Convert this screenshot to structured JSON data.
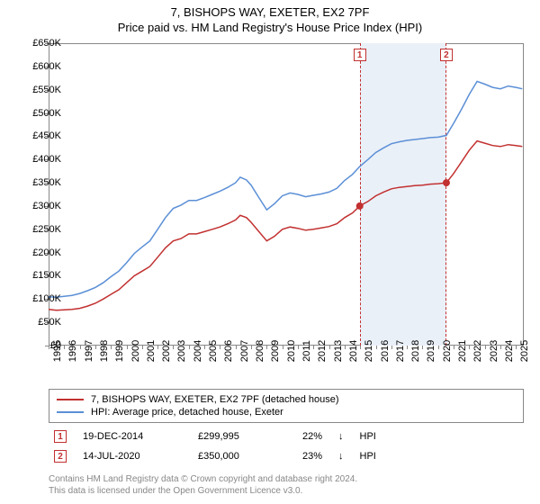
{
  "title_line1": "7, BISHOPS WAY, EXETER, EX2 7PF",
  "title_line2": "Price paid vs. HM Land Registry's House Price Index (HPI)",
  "chart": {
    "type": "line",
    "background_color": "#ffffff",
    "border_color": "#888888",
    "x_start_year": 1995,
    "x_end_year": 2025.5,
    "y_min": 0,
    "y_max": 650000,
    "y_tick_step": 50000,
    "y_tick_labels": [
      "£0",
      "£50K",
      "£100K",
      "£150K",
      "£200K",
      "£250K",
      "£300K",
      "£350K",
      "£400K",
      "£450K",
      "£500K",
      "£550K",
      "£600K",
      "£650K"
    ],
    "x_tick_years": [
      1995,
      1996,
      1997,
      1998,
      1999,
      2000,
      2001,
      2002,
      2003,
      2004,
      2005,
      2006,
      2007,
      2008,
      2009,
      2010,
      2011,
      2012,
      2013,
      2014,
      2015,
      2016,
      2017,
      2018,
      2019,
      2020,
      2021,
      2022,
      2023,
      2024,
      2025
    ],
    "series": [
      {
        "id": "price_paid",
        "label": "7, BISHOPS WAY, EXETER, EX2 7PF (detached house)",
        "color": "#c23030",
        "line_width": 1.5,
        "data": [
          [
            1995.0,
            78
          ],
          [
            1995.5,
            76
          ],
          [
            1996.0,
            77
          ],
          [
            1996.5,
            78
          ],
          [
            1997.0,
            80
          ],
          [
            1997.5,
            85
          ],
          [
            1998.0,
            91
          ],
          [
            1998.5,
            100
          ],
          [
            1999.0,
            110
          ],
          [
            1999.5,
            120
          ],
          [
            2000.0,
            135
          ],
          [
            2000.5,
            150
          ],
          [
            2001.0,
            160
          ],
          [
            2001.5,
            170
          ],
          [
            2002.0,
            190
          ],
          [
            2002.5,
            210
          ],
          [
            2003.0,
            225
          ],
          [
            2003.5,
            230
          ],
          [
            2004.0,
            240
          ],
          [
            2004.5,
            240
          ],
          [
            2005.0,
            245
          ],
          [
            2005.5,
            250
          ],
          [
            2006.0,
            255
          ],
          [
            2006.5,
            262
          ],
          [
            2007.0,
            270
          ],
          [
            2007.3,
            280
          ],
          [
            2007.7,
            275
          ],
          [
            2008.0,
            265
          ],
          [
            2008.5,
            245
          ],
          [
            2009.0,
            225
          ],
          [
            2009.5,
            235
          ],
          [
            2010.0,
            250
          ],
          [
            2010.5,
            255
          ],
          [
            2011.0,
            252
          ],
          [
            2011.5,
            248
          ],
          [
            2012.0,
            250
          ],
          [
            2012.5,
            253
          ],
          [
            2013.0,
            256
          ],
          [
            2013.5,
            262
          ],
          [
            2014.0,
            275
          ],
          [
            2014.5,
            285
          ],
          [
            2014.97,
            300
          ],
          [
            2015.5,
            310
          ],
          [
            2016.0,
            322
          ],
          [
            2016.5,
            330
          ],
          [
            2017.0,
            337
          ],
          [
            2017.5,
            340
          ],
          [
            2018.0,
            342
          ],
          [
            2018.5,
            344
          ],
          [
            2019.0,
            345
          ],
          [
            2019.5,
            347
          ],
          [
            2020.0,
            348
          ],
          [
            2020.53,
            350
          ],
          [
            2021.0,
            370
          ],
          [
            2021.5,
            395
          ],
          [
            2022.0,
            420
          ],
          [
            2022.5,
            440
          ],
          [
            2023.0,
            435
          ],
          [
            2023.5,
            430
          ],
          [
            2024.0,
            428
          ],
          [
            2024.5,
            432
          ],
          [
            2025.0,
            430
          ],
          [
            2025.4,
            428
          ]
        ]
      },
      {
        "id": "hpi",
        "label": "HPI: Average price, detached house, Exeter",
        "color": "#5b8fd6",
        "line_width": 1.5,
        "data": [
          [
            1995.0,
            105
          ],
          [
            1995.5,
            104
          ],
          [
            1996.0,
            106
          ],
          [
            1996.5,
            108
          ],
          [
            1997.0,
            112
          ],
          [
            1997.5,
            118
          ],
          [
            1998.0,
            125
          ],
          [
            1998.5,
            135
          ],
          [
            1999.0,
            148
          ],
          [
            1999.5,
            160
          ],
          [
            2000.0,
            178
          ],
          [
            2000.5,
            198
          ],
          [
            2001.0,
            212
          ],
          [
            2001.5,
            225
          ],
          [
            2002.0,
            250
          ],
          [
            2002.5,
            275
          ],
          [
            2003.0,
            295
          ],
          [
            2003.5,
            302
          ],
          [
            2004.0,
            312
          ],
          [
            2004.5,
            312
          ],
          [
            2005.0,
            318
          ],
          [
            2005.5,
            325
          ],
          [
            2006.0,
            332
          ],
          [
            2006.5,
            340
          ],
          [
            2007.0,
            350
          ],
          [
            2007.3,
            362
          ],
          [
            2007.7,
            356
          ],
          [
            2008.0,
            345
          ],
          [
            2008.5,
            318
          ],
          [
            2009.0,
            292
          ],
          [
            2009.5,
            305
          ],
          [
            2010.0,
            322
          ],
          [
            2010.5,
            328
          ],
          [
            2011.0,
            325
          ],
          [
            2011.5,
            320
          ],
          [
            2012.0,
            323
          ],
          [
            2012.5,
            326
          ],
          [
            2013.0,
            330
          ],
          [
            2013.5,
            338
          ],
          [
            2014.0,
            355
          ],
          [
            2014.5,
            368
          ],
          [
            2014.97,
            385
          ],
          [
            2015.5,
            400
          ],
          [
            2016.0,
            415
          ],
          [
            2016.5,
            425
          ],
          [
            2017.0,
            434
          ],
          [
            2017.5,
            438
          ],
          [
            2018.0,
            441
          ],
          [
            2018.5,
            443
          ],
          [
            2019.0,
            445
          ],
          [
            2019.5,
            447
          ],
          [
            2020.0,
            448
          ],
          [
            2020.53,
            452
          ],
          [
            2021.0,
            478
          ],
          [
            2021.5,
            508
          ],
          [
            2022.0,
            540
          ],
          [
            2022.5,
            568
          ],
          [
            2023.0,
            562
          ],
          [
            2023.5,
            555
          ],
          [
            2024.0,
            552
          ],
          [
            2024.5,
            558
          ],
          [
            2025.0,
            555
          ],
          [
            2025.4,
            552
          ]
        ]
      }
    ],
    "sale_markers": [
      {
        "n": "1",
        "year": 2014.97,
        "value": 300,
        "color": "#c23030"
      },
      {
        "n": "2",
        "year": 2020.53,
        "value": 350,
        "color": "#c23030"
      }
    ],
    "shaded_region": {
      "from_year": 2014.97,
      "to_year": 2020.53,
      "fill": "#eaf0f8"
    }
  },
  "legend": {
    "border_color": "#888888",
    "items": [
      {
        "color": "#c23030",
        "label": "7, BISHOPS WAY, EXETER, EX2 7PF (detached house)"
      },
      {
        "color": "#5b8fd6",
        "label": "HPI: Average price, detached house, Exeter"
      }
    ]
  },
  "annotations": [
    {
      "n": "1",
      "date": "19-DEC-2014",
      "price": "£299,995",
      "pct": "22%",
      "arrow": "↓",
      "suffix": "HPI"
    },
    {
      "n": "2",
      "date": "14-JUL-2020",
      "price": "£350,000",
      "pct": "23%",
      "arrow": "↓",
      "suffix": "HPI"
    }
  ],
  "footer": {
    "line1": "Contains HM Land Registry data © Crown copyright and database right 2024.",
    "line2": "This data is licensed under the Open Government Licence v3.0."
  }
}
